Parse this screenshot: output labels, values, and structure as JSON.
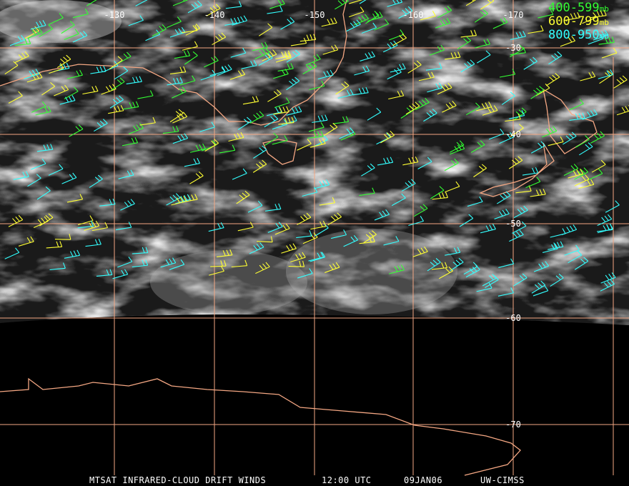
{
  "map": {
    "longitude_labels": [
      "-130",
      "-140",
      "-150",
      "-160",
      "-170"
    ],
    "latitude_labels": [
      "-30",
      "-40",
      "-50",
      "-60",
      "-70"
    ],
    "legend": [
      {
        "range": "400-599",
        "unit": "mb",
        "color": "#33ff33"
      },
      {
        "range": "600-799",
        "unit": "mb",
        "color": "#ffff33"
      },
      {
        "range": "800-950",
        "unit": "mb",
        "color": "#33ffff"
      }
    ],
    "footer": [
      "MTSAT INFRARED-CLOUD DRIFT WINDS",
      "12:00 UTC",
      "09JAN06",
      "UW-CIMSS"
    ]
  }
}
